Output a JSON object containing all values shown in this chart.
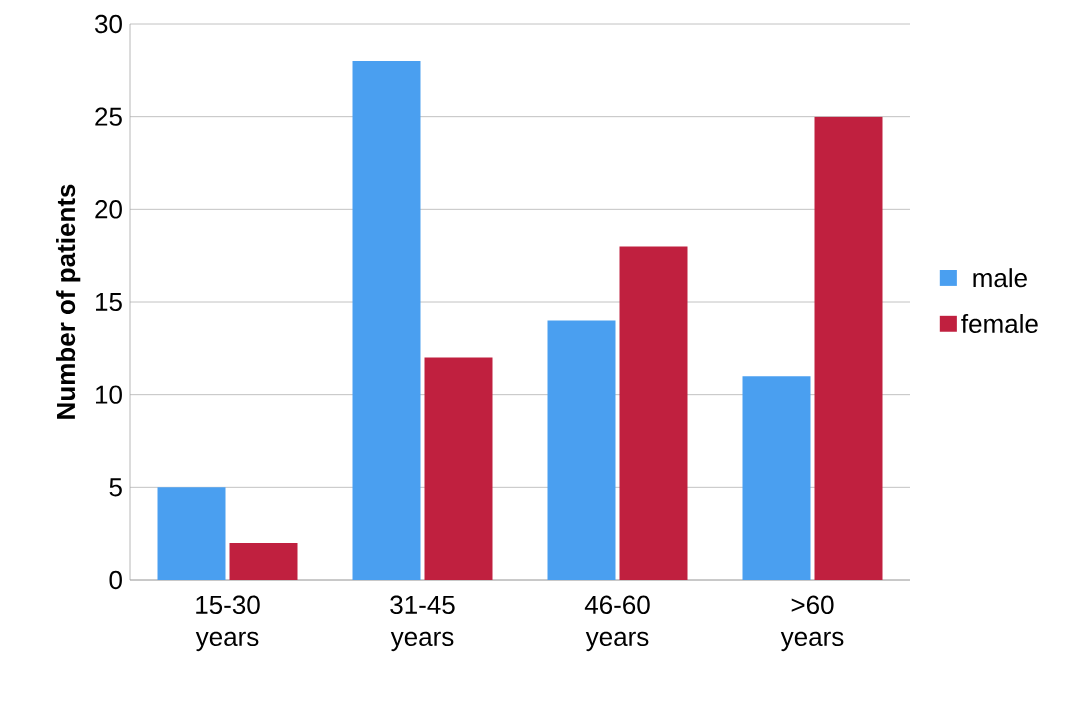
{
  "chart_data": {
    "type": "bar",
    "ylabel": "Number of patients",
    "categories": [
      "15-30 years",
      "31-45 years",
      "46-60 years",
      ">60 years"
    ],
    "series": [
      {
        "name": "male",
        "color": "#4a9ff0",
        "values": [
          5,
          28,
          14,
          11
        ]
      },
      {
        "name": "female",
        "color": "#c0203f",
        "values": [
          2,
          12,
          18,
          25
        ]
      }
    ],
    "ylim": [
      0,
      30
    ],
    "yticks": [
      0,
      5,
      10,
      15,
      20,
      25,
      30
    ],
    "grid": "y",
    "legend": "right"
  }
}
